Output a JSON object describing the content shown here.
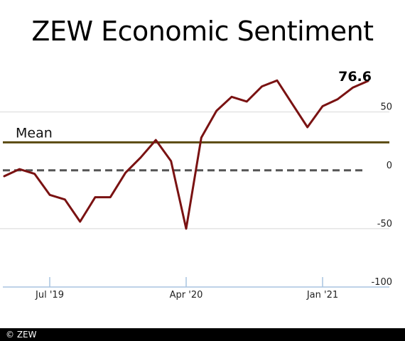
{
  "chart_data": {
    "type": "line",
    "title": "ZEW Economic Sentiment",
    "x": [
      "2019-04",
      "2019-05",
      "2019-06",
      "2019-07",
      "2019-08",
      "2019-09",
      "2019-10",
      "2019-11",
      "2019-12",
      "2020-01",
      "2020-02",
      "2020-03",
      "2020-04",
      "2020-05",
      "2020-06",
      "2020-07",
      "2020-08",
      "2020-09",
      "2020-10",
      "2020-11",
      "2020-12",
      "2021-01",
      "2021-02",
      "2021-03",
      "2021-04"
    ],
    "series": [
      {
        "name": "",
        "color": "#7a1212",
        "values": [
          -5,
          1,
          -3,
          -21,
          -25,
          -44,
          -23,
          -23,
          -2,
          11,
          26,
          8,
          -50,
          28,
          51,
          63,
          59,
          72,
          77,
          57,
          37,
          55,
          61,
          71,
          76.6
        ]
      }
    ],
    "ylim": [
      -100,
      90
    ],
    "yticks": [
      {
        "value": 50,
        "label": "50"
      },
      {
        "value": 0,
        "label": "0"
      },
      {
        "value": -50,
        "label": "-50"
      },
      {
        "value": -100,
        "label": "-100"
      }
    ],
    "xticks": [
      {
        "index": 3,
        "label": "Jul '19"
      },
      {
        "index": 12,
        "label": "Apr '20"
      },
      {
        "index": 21,
        "label": "Jan '21"
      }
    ],
    "mean": {
      "value": 24,
      "label": "Mean",
      "color": "#5a4a10"
    },
    "zero_line": {
      "value": 0,
      "style": "dashed",
      "color": "#555555"
    },
    "last_value_label": "76.6",
    "grid": true
  },
  "footer": {
    "copyright": "© ZEW"
  }
}
